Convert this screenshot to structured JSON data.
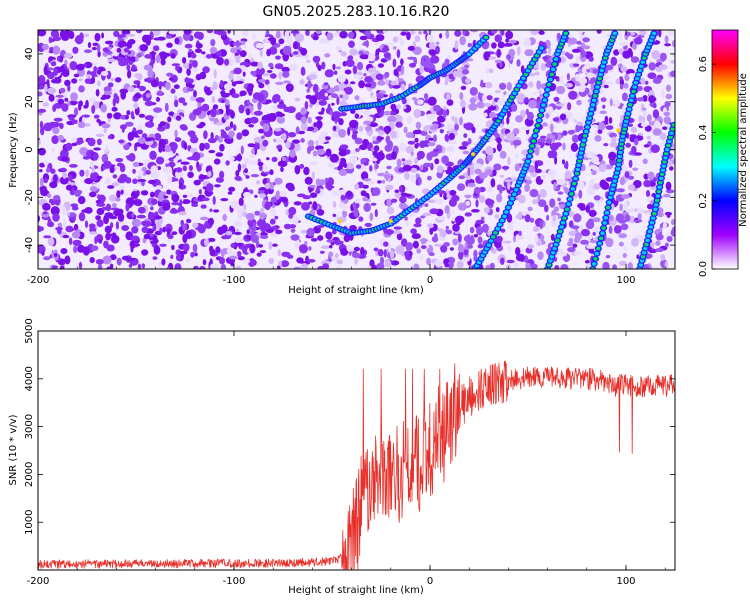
{
  "title": "GN05.2025.283.10.16.R20",
  "chart_data": [
    {
      "type": "heatmap",
      "xlabel": "Height of straight line (km)",
      "ylabel": "Frequency (Hz)",
      "xlim": [
        -200,
        125
      ],
      "ylim": [
        -50,
        50
      ],
      "xticks": [
        -200,
        -100,
        0,
        100
      ],
      "yticks": [
        -40,
        -20,
        0,
        20,
        40
      ],
      "colorbar": {
        "label": "Normalized spectral amplitude",
        "range": [
          0,
          0.7
        ],
        "ticks": [
          0.0,
          0.2,
          0.4,
          0.6
        ],
        "colors": [
          "#ffffff",
          "#a000ff",
          "#0000ff",
          "#00ffff",
          "#00ff00",
          "#ffff00",
          "#ff0000",
          "#ff00ff"
        ]
      },
      "tracks": [
        {
          "name": "parabola-low",
          "points": [
            [
              -62,
              -28
            ],
            [
              -50,
              -32
            ],
            [
              -40,
              -35
            ],
            [
              -30,
              -34
            ],
            [
              -20,
              -31
            ],
            [
              -10,
              -25
            ],
            [
              0,
              -19
            ],
            [
              10,
              -12
            ],
            [
              18,
              -6
            ],
            [
              22,
              -2
            ],
            [
              28,
              4
            ],
            [
              35,
              12
            ],
            [
              42,
              22
            ],
            [
              50,
              33
            ],
            [
              58,
              44
            ]
          ]
        },
        {
          "name": "parabola-high",
          "points": [
            [
              -45,
              17
            ],
            [
              -35,
              18
            ],
            [
              -25,
              19
            ],
            [
              -15,
              22
            ],
            [
              -5,
              27
            ],
            [
              0,
              30
            ],
            [
              8,
              33
            ],
            [
              15,
              37
            ],
            [
              20,
              40
            ],
            [
              30,
              48
            ]
          ]
        },
        {
          "name": "streak-1",
          "points": [
            [
              23,
              -50
            ],
            [
              30,
              -40
            ],
            [
              38,
              -28
            ],
            [
              45,
              -15
            ],
            [
              50,
              -5
            ],
            [
              55,
              10
            ],
            [
              60,
              25
            ],
            [
              65,
              40
            ],
            [
              70,
              50
            ]
          ]
        },
        {
          "name": "streak-2",
          "points": [
            [
              60,
              -50
            ],
            [
              65,
              -38
            ],
            [
              70,
              -25
            ],
            [
              75,
              -10
            ],
            [
              78,
              2
            ],
            [
              82,
              15
            ],
            [
              86,
              28
            ],
            [
              90,
              40
            ],
            [
              95,
              50
            ]
          ]
        },
        {
          "name": "streak-3",
          "points": [
            [
              83,
              -50
            ],
            [
              88,
              -35
            ],
            [
              92,
              -20
            ],
            [
              96,
              -8
            ],
            [
              98,
              4
            ],
            [
              101,
              15
            ],
            [
              105,
              28
            ],
            [
              110,
              40
            ],
            [
              115,
              50
            ]
          ]
        },
        {
          "name": "streak-4",
          "points": [
            [
              107,
              -50
            ],
            [
              111,
              -38
            ],
            [
              115,
              -25
            ],
            [
              118,
              -12
            ],
            [
              121,
              0
            ],
            [
              125,
              12
            ]
          ]
        }
      ]
    },
    {
      "type": "line",
      "xlabel": "Height of straight line (km)",
      "ylabel": "SNR (10 * v/v)",
      "xlim": [
        -200,
        125
      ],
      "ylim": [
        0,
        5000
      ],
      "xticks": [
        -200,
        -100,
        0,
        100
      ],
      "yticks": [
        1000,
        2000,
        3000,
        4000,
        5000
      ],
      "color": "#e8302a",
      "series": [
        {
          "name": "snr-trend",
          "x": [
            -200,
            -150,
            -100,
            -70,
            -50,
            -42,
            -38,
            -34,
            -30,
            -25,
            -20,
            -15,
            -10,
            -5,
            0,
            5,
            10,
            15,
            20,
            25,
            30,
            40,
            50,
            60,
            70,
            80,
            90,
            95,
            100,
            105,
            110,
            115,
            120,
            125
          ],
          "y": [
            120,
            130,
            140,
            150,
            180,
            300,
            800,
            1500,
            1900,
            2000,
            2000,
            2100,
            2200,
            2300,
            2500,
            2800,
            3100,
            3400,
            3600,
            3750,
            3850,
            3950,
            4020,
            4050,
            4000,
            4000,
            3950,
            3850,
            3900,
            3800,
            3850,
            3850,
            3850,
            3900
          ]
        }
      ]
    }
  ]
}
